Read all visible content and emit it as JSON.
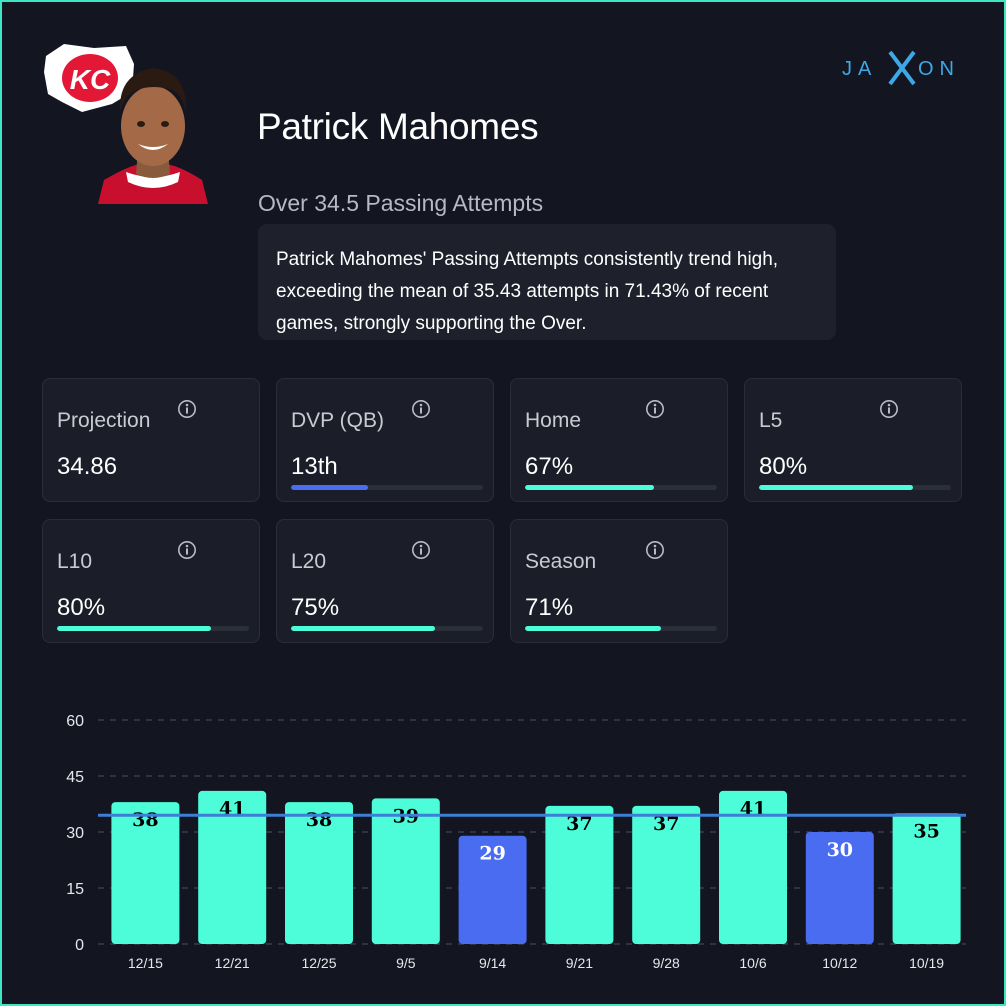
{
  "brand": {
    "name": "JAXON",
    "accent": "#3ea7e6"
  },
  "team": {
    "logo": "KC"
  },
  "player": {
    "name": "Patrick Mahomes"
  },
  "prop": {
    "title": "Over 34.5 Passing Attempts",
    "summary": "Patrick Mahomes' Passing Attempts consistently trend high, exceeding the mean of 35.43 attempts in 71.43% of recent games, strongly supporting the Over."
  },
  "stats": [
    {
      "label": "Projection",
      "value": "34.86"
    },
    {
      "label": "DVP (QB)",
      "value": "13th",
      "fill": 0.4,
      "color": "#4a6cf0"
    },
    {
      "label": "Home",
      "value": "67%",
      "fill": 0.67,
      "color": "#4dfdd9"
    },
    {
      "label": "L5",
      "value": "80%",
      "fill": 0.8,
      "color": "#4dfdd9"
    },
    {
      "label": "L10",
      "value": "80%",
      "fill": 0.8,
      "color": "#4dfdd9"
    },
    {
      "label": "L20",
      "value": "75%",
      "fill": 0.75,
      "color": "#4dfdd9"
    },
    {
      "label": "Season",
      "value": "71%",
      "fill": 0.71,
      "color": "#4dfdd9"
    }
  ],
  "chart_data": {
    "type": "bar",
    "categories": [
      "12/15",
      "12/21",
      "12/25",
      "9/5",
      "9/14",
      "9/21",
      "9/28",
      "10/6",
      "10/12",
      "10/19"
    ],
    "values": [
      38,
      41,
      38,
      39,
      29,
      37,
      37,
      41,
      30,
      35
    ],
    "ylim": [
      0,
      60
    ],
    "yticks": [
      0,
      15,
      30,
      45,
      60
    ],
    "line": 34.5,
    "grid": true,
    "colors": {
      "over": "#4dfdd9",
      "under": "#4a6cf0",
      "line": "#3d7fd6"
    }
  }
}
